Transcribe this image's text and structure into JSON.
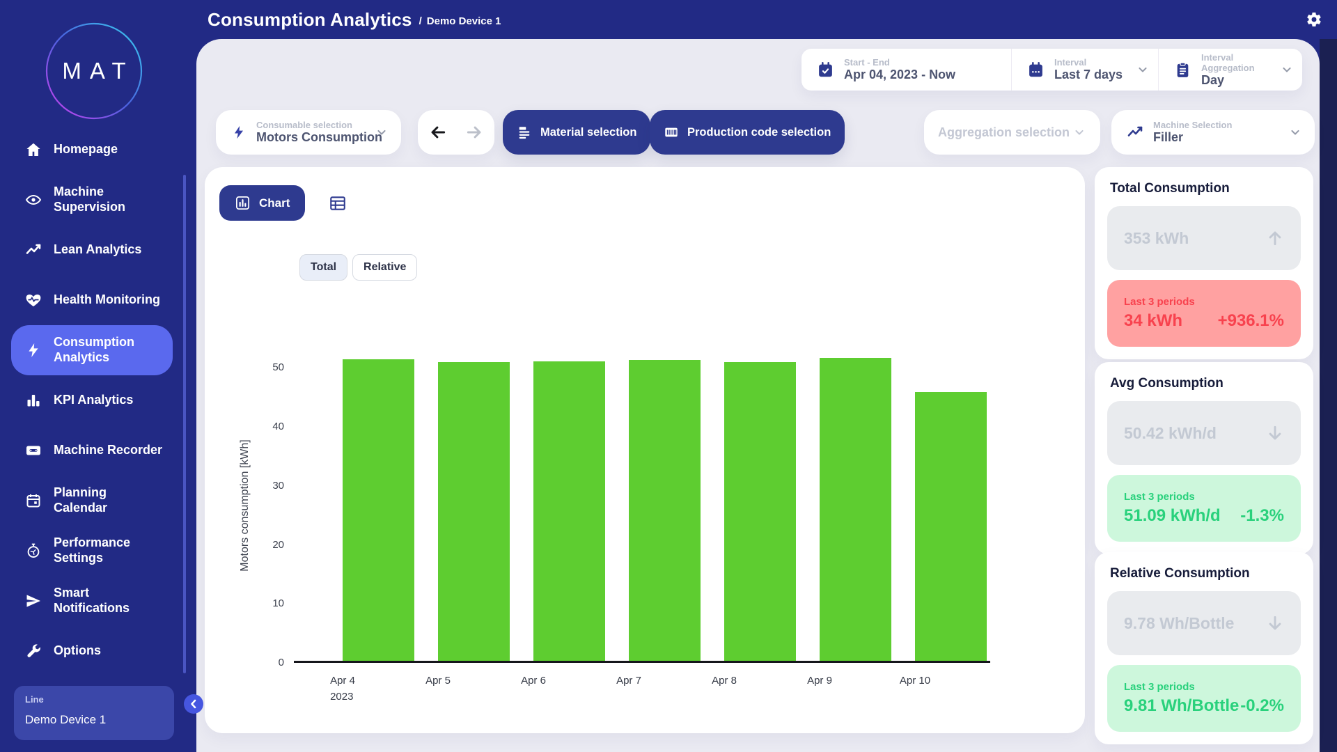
{
  "header": {
    "title": "Consumption Analytics",
    "separator": "/",
    "breadcrumb": "Demo Device 1"
  },
  "logo": {
    "text": "MAT"
  },
  "sidebar": {
    "items": [
      {
        "label": "Homepage",
        "icon": "home",
        "active": false
      },
      {
        "label": "Machine\nSupervision",
        "icon": "eye",
        "active": false
      },
      {
        "label": "Lean Analytics",
        "icon": "trend",
        "active": false
      },
      {
        "label": "Health Monitoring",
        "icon": "heart",
        "active": false
      },
      {
        "label": "Consumption\nAnalytics",
        "icon": "bolt",
        "active": true
      },
      {
        "label": "KPI Analytics",
        "icon": "bars",
        "active": false
      },
      {
        "label": "Machine Recorder",
        "icon": "cassette",
        "active": false
      },
      {
        "label": "Planning\nCalendar",
        "icon": "calendar",
        "active": false
      },
      {
        "label": "Performance\nSettings",
        "icon": "stopwatch",
        "active": false
      },
      {
        "label": "Smart\nNotifications",
        "icon": "send",
        "active": false
      },
      {
        "label": "Options",
        "icon": "wrench",
        "active": false
      }
    ],
    "device": {
      "label": "Line",
      "value": "Demo Device 1"
    }
  },
  "filters": {
    "start_end": {
      "label": "Start - End",
      "value": "Apr 04, 2023 - Now"
    },
    "interval": {
      "label": "Interval",
      "value": "Last 7 days"
    },
    "interval_aggregation": {
      "label": "Interval Aggregation",
      "value": "Day"
    },
    "consumable": {
      "label": "Consumable selection",
      "value": "Motors Consumption"
    },
    "material_button": "Material selection",
    "production_button": "Production code selection",
    "aggregation_placeholder": "Aggregation selection",
    "machine": {
      "label": "Machine Selection",
      "value": "Filler"
    }
  },
  "view": {
    "chart_button": "Chart",
    "total_tab": "Total",
    "relative_tab": "Relative"
  },
  "chart_data": {
    "type": "bar",
    "categories": [
      "Apr 4",
      "Apr 5",
      "Apr 6",
      "Apr 7",
      "Apr 8",
      "Apr 9",
      "Apr 10"
    ],
    "first_category_year": "2023",
    "values": [
      51.3,
      50.9,
      51.0,
      51.2,
      50.9,
      51.6,
      45.8
    ],
    "unit": "kWh",
    "ylabel": "Motors consumption [kWh]",
    "yticks": [
      0,
      10,
      20,
      30,
      40,
      50
    ],
    "ylim": [
      0,
      53
    ],
    "grid": false,
    "legend": "none",
    "bar_color": "#5ecd30"
  },
  "stats": [
    {
      "title": "Total Consumption",
      "current": "353 kWh",
      "trend": "up",
      "period_label": "Last 3 periods",
      "period_value": "34 kWh",
      "period_change": "+936.1%",
      "tone": "negative"
    },
    {
      "title": "Avg Consumption",
      "current": "50.42 kWh/d",
      "trend": "down",
      "period_label": "Last 3 periods",
      "period_value": "51.09 kWh/d",
      "period_change": "-1.3%",
      "tone": "positive"
    },
    {
      "title": "Relative Consumption",
      "current": "9.78 Wh/Bottle",
      "trend": "down",
      "period_label": "Last 3 periods",
      "period_value": "9.81 Wh/Bottle",
      "period_change": "-0.2%",
      "tone": "positive"
    }
  ],
  "colors": {
    "sidebar_blue": "#222a85",
    "active_item": "#5a69ee",
    "accent_blue": "#2e3a8f",
    "bar_green": "#5ecd30",
    "negative_bg": "#ffa1a1",
    "negative_text": "#f8424e",
    "positive_bg": "#cdf7dc",
    "positive_text": "#29d17c"
  }
}
